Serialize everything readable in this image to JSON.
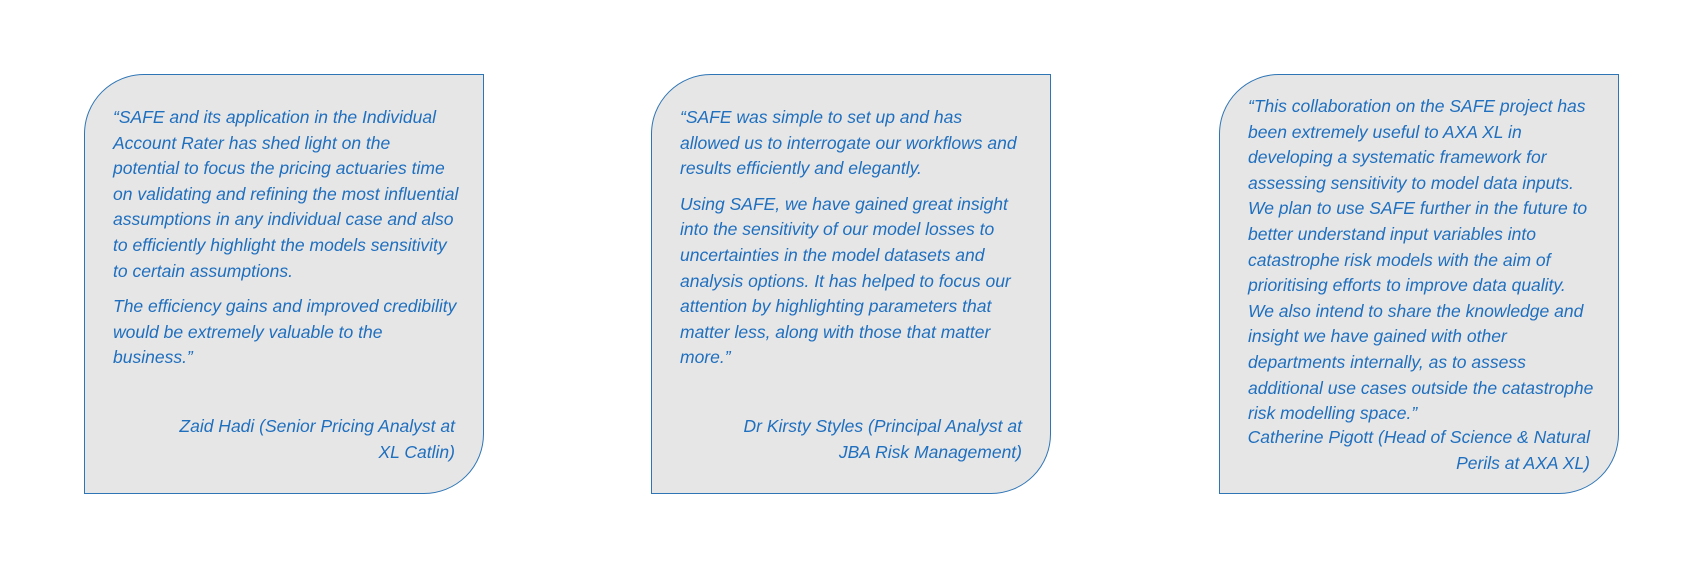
{
  "testimonials": [
    {
      "paragraphs": [
        "“SAFE and its application in the Individual Account Rater has shed light on the potential to focus the pricing actuaries time on validating and refining the most influential assumptions in any individual case and also to efficiently highlight the models sensitivity to certain assumptions.",
        "The efficiency gains and improved credibility would be extremely valuable to the business.”"
      ],
      "attribution": "Zaid Hadi (Senior Pricing Analyst at XL Catlin)"
    },
    {
      "paragraphs": [
        "“SAFE was simple to set up and has allowed us to interrogate our workflows and results efficiently and elegantly.",
        "Using SAFE, we have gained great insight into the sensitivity of our model losses to uncertainties in the model datasets and analysis options. It has helped to focus our attention by highlighting parameters that matter less, along with those that matter more.”"
      ],
      "attribution": "Dr Kirsty Styles (Principal Analyst at JBA Risk Management)"
    },
    {
      "paragraphs": [
        "“This collaboration on the SAFE project has been extremely useful to AXA XL in developing a systematic framework for assessing sensitivity to model data inputs. We plan to use SAFE further in the future to better understand input variables into catastrophe risk models with the aim of prioritising efforts to improve data quality.  We also intend to share the knowledge and insight we have gained with other departments internally, as to assess additional use cases outside the catastrophe risk modelling space.”"
      ],
      "attribution": "Catherine Pigott (Head of Science & Natural Perils at AXA XL)"
    }
  ],
  "colors": {
    "card_background": "#e6e6e6",
    "card_border": "#2e75b6",
    "text": "#1f6fbf"
  }
}
